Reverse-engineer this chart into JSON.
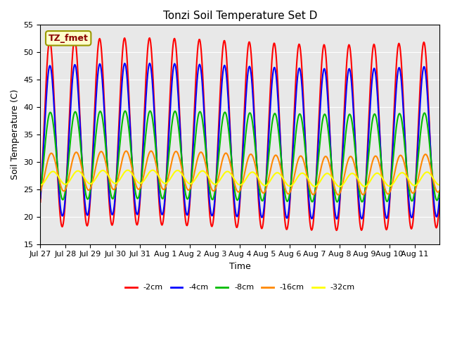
{
  "title": "Tonzi Soil Temperature Set D",
  "xlabel": "Time",
  "ylabel": "Soil Temperature (C)",
  "ylim": [
    15,
    55
  ],
  "bg_color": "#e8e8e8",
  "legend_label": "TZ_fmet",
  "series_names": [
    "-2cm",
    "-4cm",
    "-8cm",
    "-16cm",
    "-32cm"
  ],
  "series_colors": [
    "#ff0000",
    "#0000ff",
    "#00bb00",
    "#ff8800",
    "#ffff00"
  ],
  "series_lw": [
    1.5,
    1.5,
    1.5,
    1.5,
    1.5
  ],
  "xtick_labels": [
    "Jul 27",
    "Jul 28",
    "Jul 29",
    "Jul 30",
    "Jul 31",
    "Aug 1",
    "Aug 2",
    "Aug 3",
    "Aug 4",
    "Aug 5",
    "Aug 6",
    "Aug 7",
    "Aug 8",
    "Aug 9",
    "Aug 10",
    "Aug 11"
  ],
  "n_days": 16,
  "points_per_day": 48,
  "amp_2": 16,
  "base_2": 34,
  "amp_4": 13,
  "base_4": 33,
  "phase_lag_4": 0.05,
  "amp_8": 8,
  "base_8": 31,
  "phase_lag_8": 0.15,
  "amp_16": 3.5,
  "base_16": 28,
  "phase_lag_16": 0.4,
  "amp_32": 1.2,
  "base_32": 27,
  "phase_lag_32": 0.8
}
